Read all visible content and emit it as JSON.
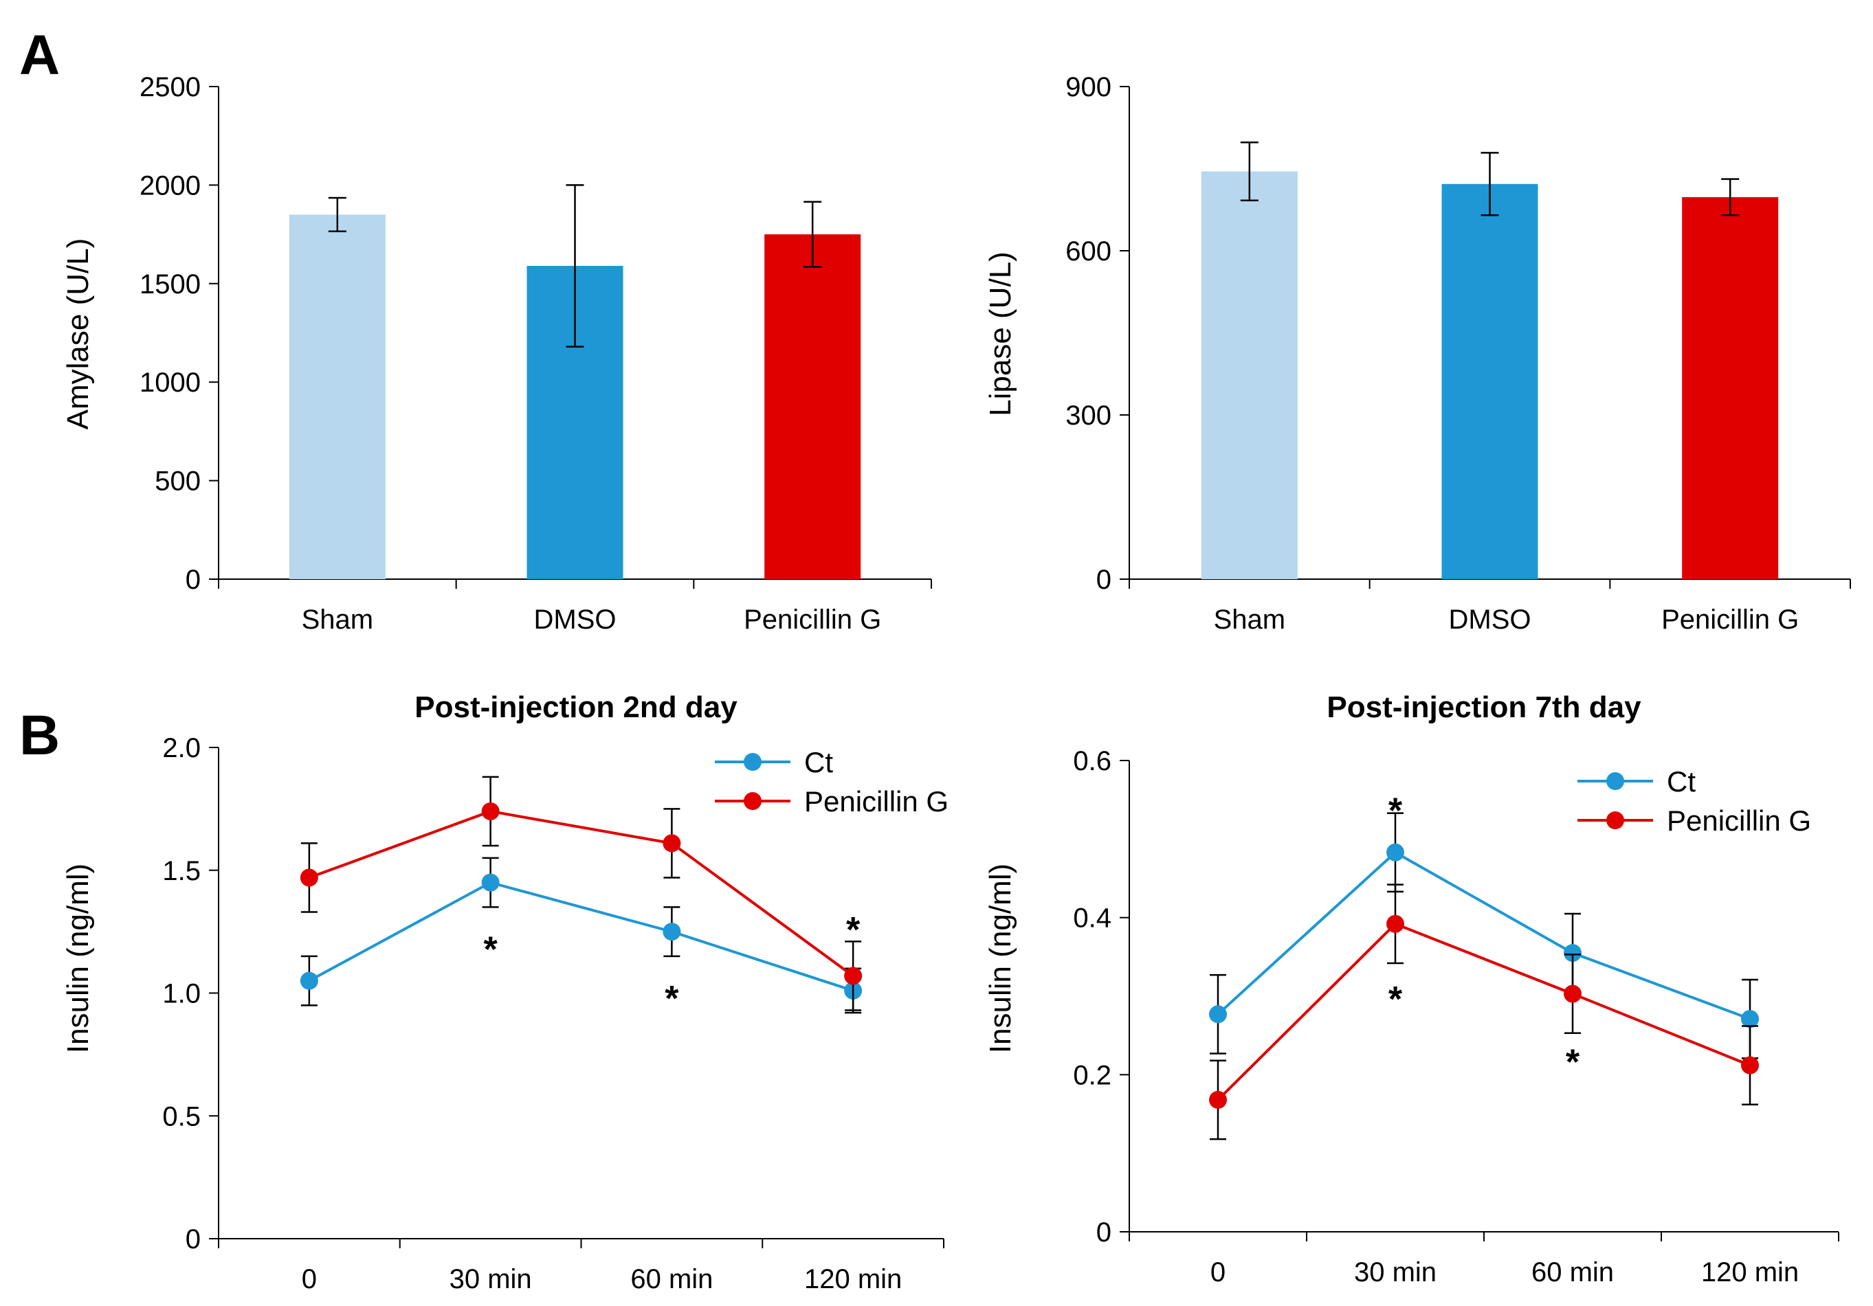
{
  "panel_labels": {
    "a": "A",
    "b": "B"
  },
  "chart_data": [
    {
      "type": "bar",
      "title": "",
      "ylabel": "Amylase (U/L)",
      "ylim": [
        0,
        2500
      ],
      "yticks": [
        0,
        500,
        1000,
        1500,
        2000,
        2500
      ],
      "categories": [
        "Sham",
        "DMSO",
        "Penicillin G"
      ],
      "values": [
        1850,
        1590,
        1750
      ],
      "errors": [
        85,
        410,
        165
      ],
      "colors": [
        "#b6d7ee",
        "#1f97d4",
        "#e00000"
      ]
    },
    {
      "type": "bar",
      "title": "",
      "ylabel": "Lipase (U/L)",
      "ylim": [
        0,
        900
      ],
      "yticks": [
        0,
        300,
        600,
        900
      ],
      "categories": [
        "Sham",
        "DMSO",
        "Penicillin G"
      ],
      "values": [
        745,
        722,
        698
      ],
      "errors": [
        53,
        57,
        33
      ],
      "colors": [
        "#b6d7ee",
        "#1f97d4",
        "#e00000"
      ]
    },
    {
      "type": "line",
      "title": "Post-injection 2nd day",
      "ylabel": "Insulin (ng/ml)",
      "ylim": [
        0,
        2.0
      ],
      "yticks": [
        "0",
        "0.5",
        "1.0",
        "1.5",
        "2.0"
      ],
      "categories": [
        "0",
        "30 min",
        "60 min",
        "120 min"
      ],
      "legend_position": "top-right",
      "series": [
        {
          "name": "Ct",
          "color": "#1f97d4",
          "values": [
            1.05,
            1.45,
            1.25,
            1.01
          ],
          "errors": [
            0.1,
            0.1,
            0.1,
            0.09
          ]
        },
        {
          "name": "Penicillin G",
          "color": "#e00000",
          "values": [
            1.47,
            1.74,
            1.61,
            1.07
          ],
          "errors": [
            0.14,
            0.14,
            0.14,
            0.14
          ]
        }
      ],
      "annotations": [
        {
          "text": "*",
          "category": "30 min",
          "value": 1.19
        },
        {
          "text": "*",
          "category": "60 min",
          "value": 0.99
        },
        {
          "text": "*",
          "category": "120 min",
          "value": 1.27
        }
      ]
    },
    {
      "type": "line",
      "title": "Post-injection 7th day",
      "ylabel": "Insulin (ng/ml)",
      "ylim": [
        0,
        0.6
      ],
      "yticks": [
        "0",
        "0.2",
        "0.4",
        "0.6"
      ],
      "categories": [
        "0",
        "30 min",
        "60 min",
        "120 min"
      ],
      "legend_position": "top-right",
      "series": [
        {
          "name": "Ct",
          "color": "#1f97d4",
          "values": [
            0.277,
            0.483,
            0.355,
            0.271
          ],
          "errors": [
            0.05,
            0.05,
            0.05,
            0.05
          ]
        },
        {
          "name": "Penicillin G",
          "color": "#e00000",
          "values": [
            0.168,
            0.392,
            0.303,
            0.212
          ],
          "errors": [
            0.05,
            0.05,
            0.05,
            0.05
          ]
        }
      ],
      "annotations": [
        {
          "text": "*",
          "category": "30 min",
          "value": 0.54
        },
        {
          "text": "*",
          "category": "30 min",
          "value": 0.3
        },
        {
          "text": "*",
          "category": "60 min",
          "value": 0.22
        }
      ]
    }
  ]
}
